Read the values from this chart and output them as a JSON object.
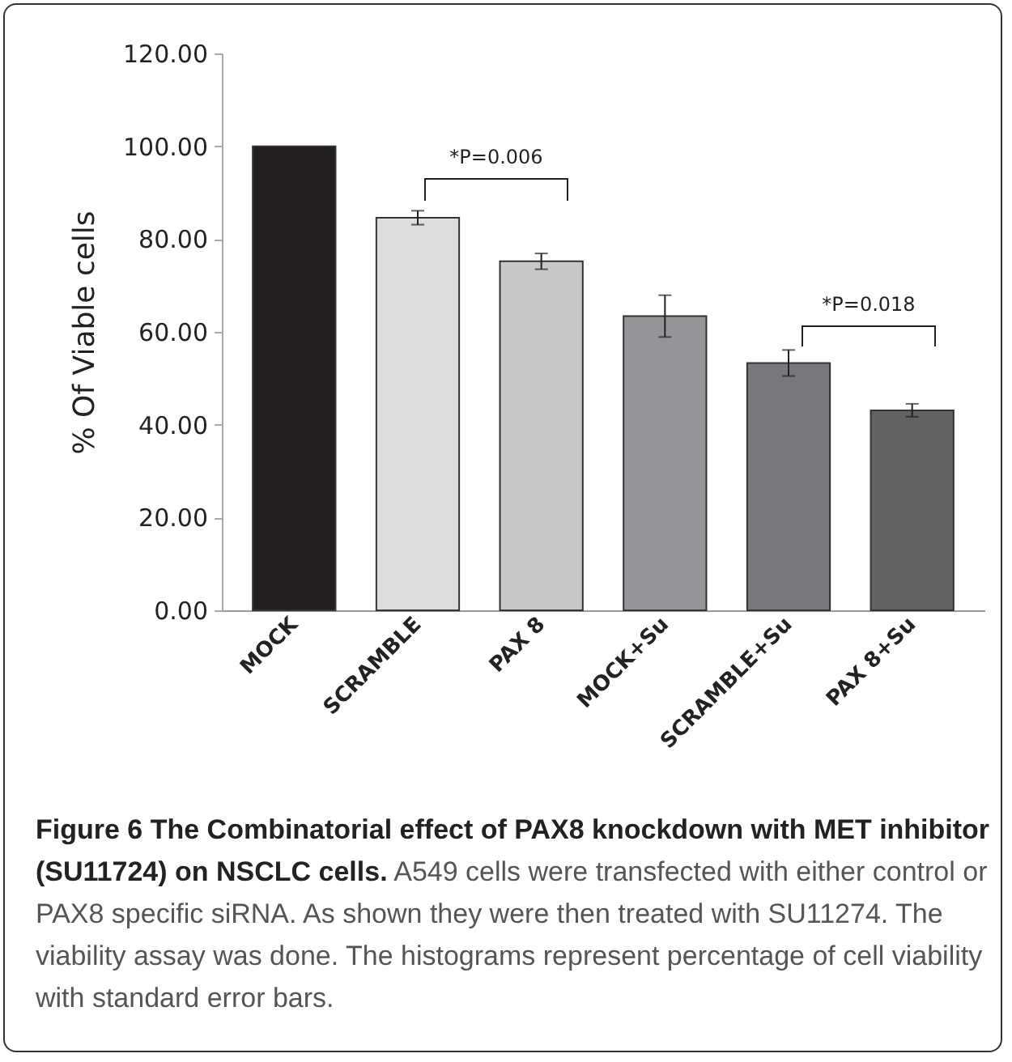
{
  "chart_data": {
    "type": "bar",
    "title": "Figure 6 The Combinatorial effect of PAX8 knockdown with MET inhibitor (SU11724) on NSCLC cells.",
    "ylabel": "% Of Viable cells",
    "categories": [
      "MOCK",
      "SCRAMBLE",
      "PAX 8",
      "MOCK+Su",
      "SCRAMBLE+Su",
      "PAX 8+Su"
    ],
    "values": [
      100,
      84.6,
      75.2,
      63.4,
      53.3,
      43.1
    ],
    "errors": [
      null,
      1.5,
      1.7,
      4.5,
      2.8,
      1.4
    ],
    "colors": [
      "#231f20",
      "#dcdddf",
      "#c7c8ca",
      "#939598",
      "#77787b",
      "#616264"
    ],
    "ylim": [
      0,
      120
    ],
    "yticks": [
      {
        "value": 0,
        "label": "0.00"
      },
      {
        "value": 20,
        "label": "20.00"
      },
      {
        "value": 40,
        "label": "40.00"
      },
      {
        "value": 60,
        "label": "60.00"
      },
      {
        "value": 80,
        "label": "80.00"
      },
      {
        "value": 100,
        "label": "100.00"
      },
      {
        "value": 120,
        "label": "120.00"
      }
    ],
    "grid": false,
    "legend": false,
    "annotations": [
      "*P=0.006",
      "*P=0.018",
      "A549 cells were transfected with either control or PAX8 specific siRNA. As shown they were then treated with SU11274. The viability assay was done. The histograms represent percentage of cell viability with standard error bars."
    ]
  }
}
